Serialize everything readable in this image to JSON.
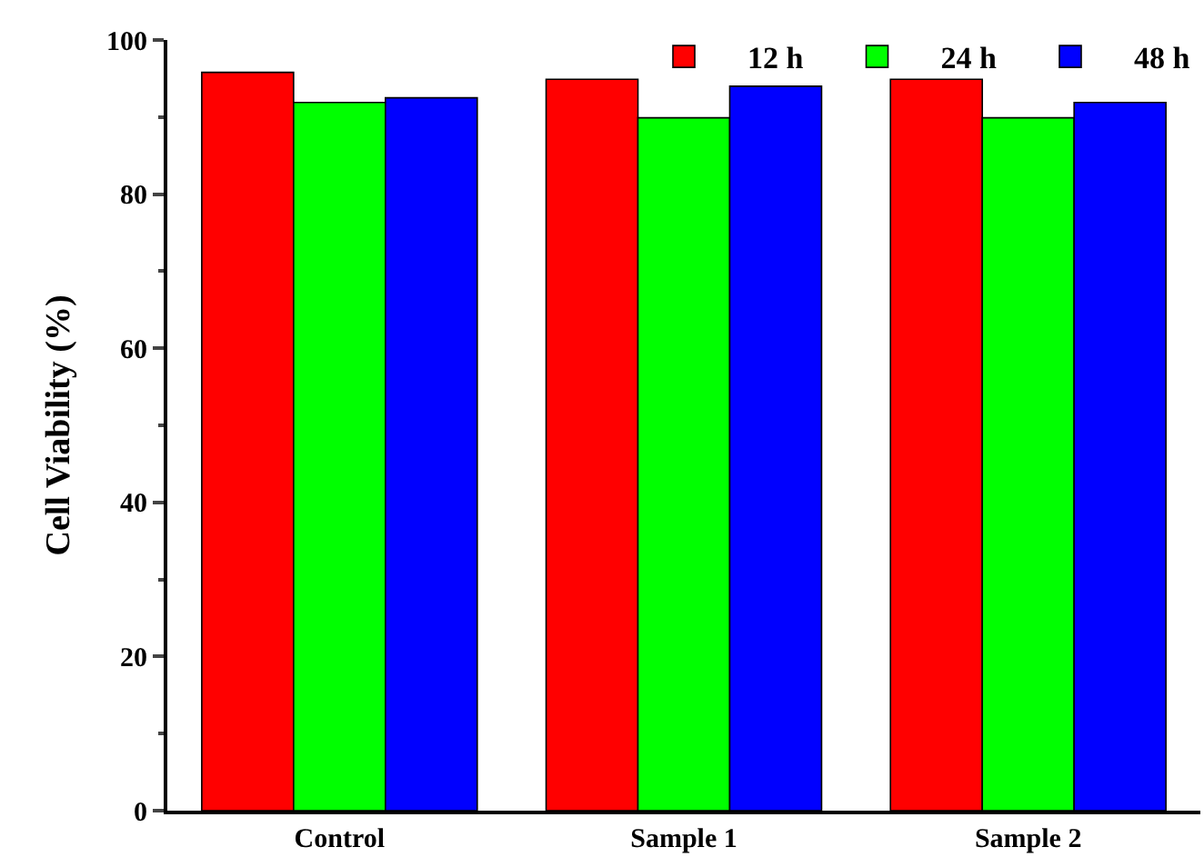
{
  "chart_data": {
    "type": "bar",
    "ylabel": "Cell Viability (%)",
    "categories": [
      "Control",
      "Sample 1",
      "Sample 2"
    ],
    "series": [
      {
        "name": "12 h",
        "color": "#ff0000",
        "values": [
          95.8,
          94.9,
          94.9
        ]
      },
      {
        "name": "24 h",
        "color": "#00ff00",
        "values": [
          91.9,
          89.9,
          89.9
        ]
      },
      {
        "name": "48 h",
        "color": "#0000ff",
        "values": [
          92.5,
          94.0,
          91.9
        ]
      }
    ],
    "ylim": [
      0,
      100
    ],
    "yticks": [
      0,
      20,
      40,
      60,
      80,
      100
    ],
    "legend": "top right"
  }
}
